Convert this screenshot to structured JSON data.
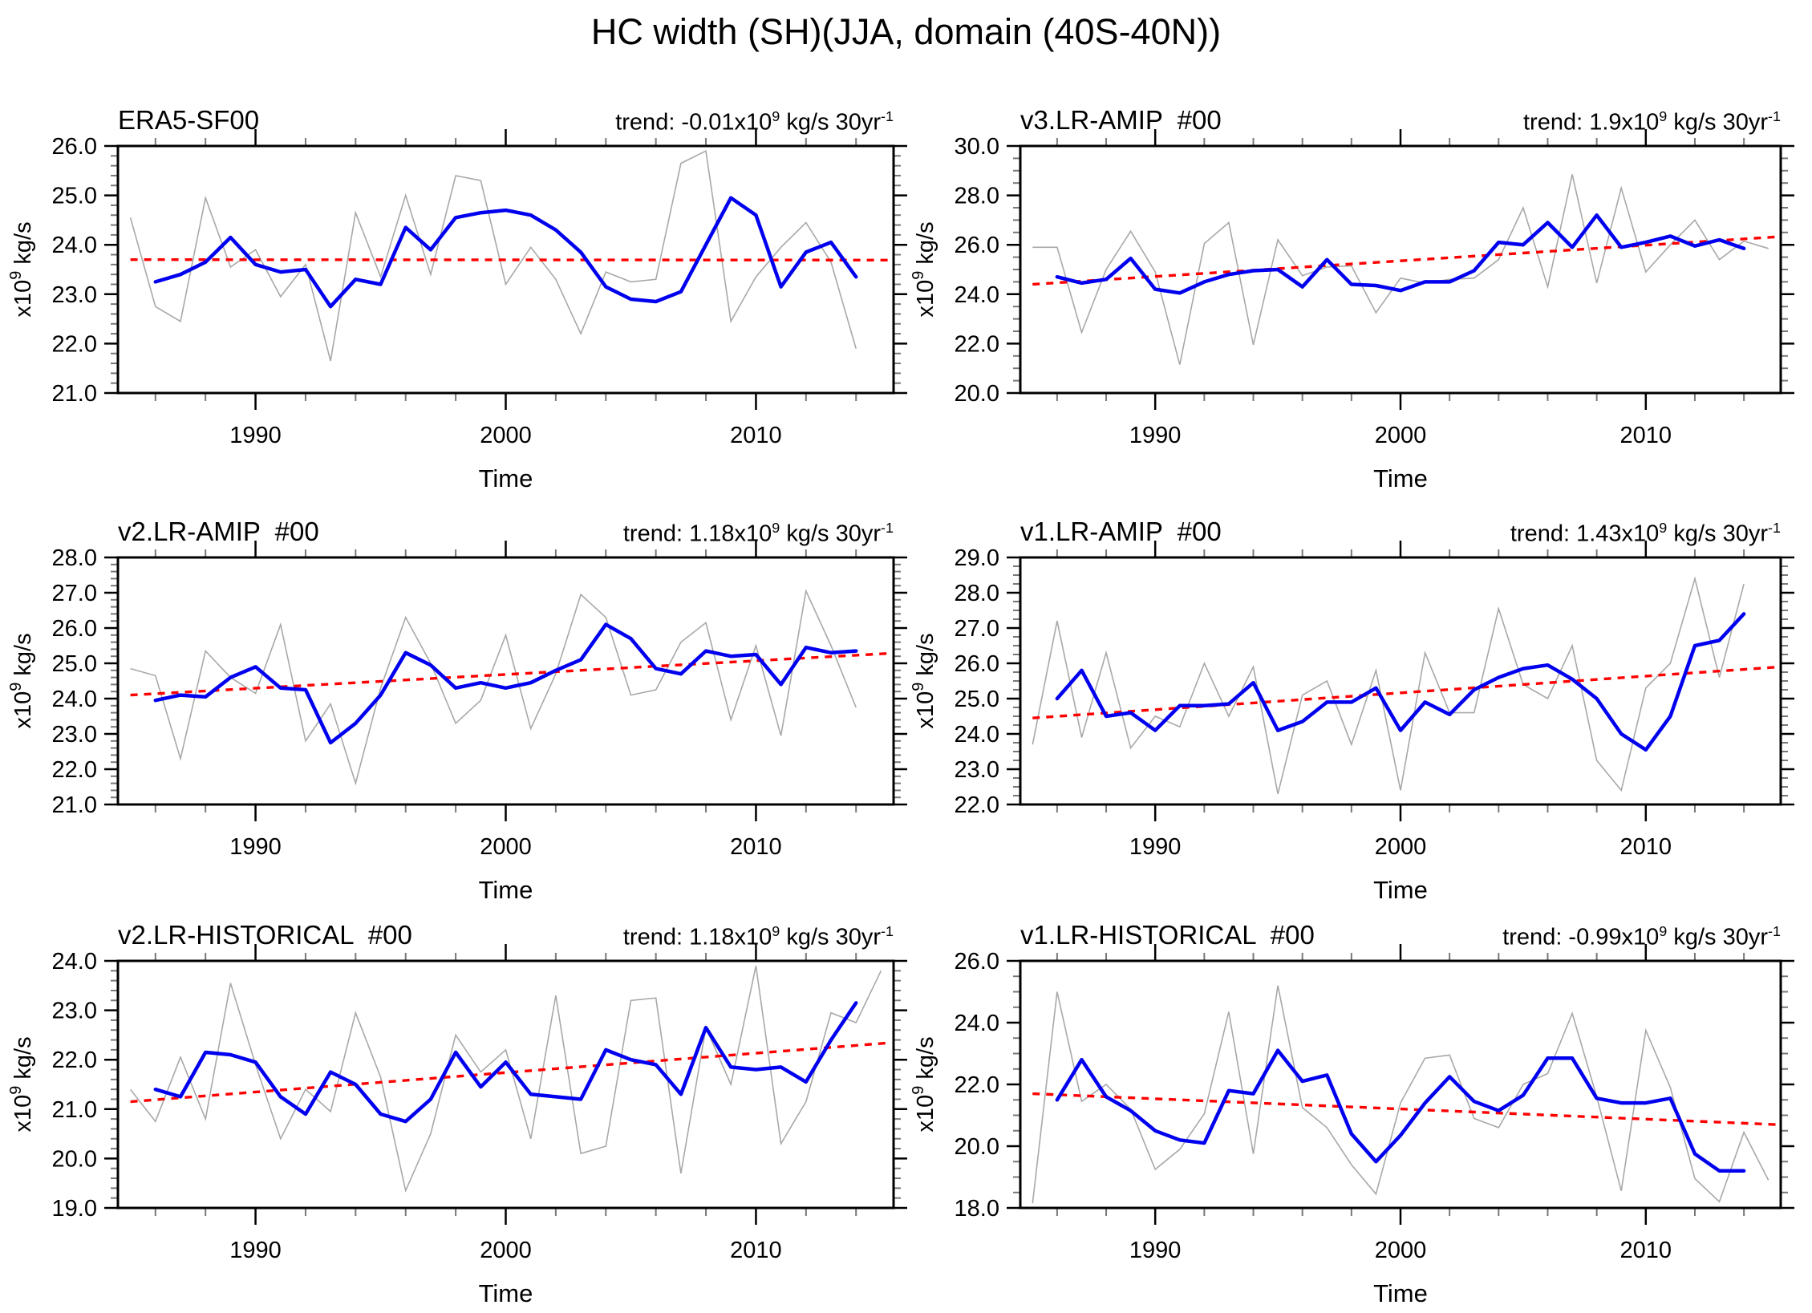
{
  "page_title": "HC width (SH)(JJA, domain (40S-40N))",
  "colors": {
    "background": "#ffffff",
    "annual_line": "#a8a8a8",
    "smoothed_line": "#0000ee",
    "trend_line": "#ff0000",
    "axis_major": "#000000",
    "axis_minor": "#787878"
  },
  "xaxis": {
    "label": "Time",
    "xlim": [
      1984.5,
      2015.5
    ],
    "major_ticks": [
      1990,
      2000,
      2010
    ],
    "major_tick_labels": [
      "1990",
      "2000",
      "2010"
    ],
    "minor_tick_start": 1986,
    "minor_tick_step": 2,
    "minor_tick_end": 2014
  },
  "ylabel_parts": {
    "pre": "x10",
    "exp": "9",
    "post": " kg/s"
  },
  "years": [
    1985,
    1986,
    1987,
    1988,
    1989,
    1990,
    1991,
    1992,
    1993,
    1994,
    1995,
    1996,
    1997,
    1998,
    1999,
    2000,
    2001,
    2002,
    2003,
    2004,
    2005,
    2006,
    2007,
    2008,
    2009,
    2010,
    2011,
    2012,
    2013,
    2014,
    2015
  ],
  "chart_data": [
    {
      "type": "line",
      "title": "ERA5-SF00",
      "trend": {
        "pre": "trend: -0.01x10",
        "exp": "9",
        "mid": " kg/s 30yr",
        "exp2": "-1"
      },
      "ylim": [
        21.0,
        26.0
      ],
      "ytick_step": 1.0,
      "yminor_step": 0.2,
      "ytick_labels": [
        "21.0",
        "22.0",
        "23.0",
        "24.0",
        "25.0",
        "26.0"
      ],
      "series": [
        {
          "name": "annual",
          "values": [
            24.55,
            22.75,
            22.45,
            24.95,
            23.55,
            23.9,
            22.95,
            23.6,
            21.65,
            24.65,
            23.35,
            25.0,
            23.4,
            25.4,
            25.3,
            23.2,
            23.95,
            23.3,
            22.2,
            23.45,
            23.25,
            23.3,
            25.65,
            25.9,
            22.45,
            23.35,
            23.95,
            24.45,
            23.65,
            21.9,
            null
          ]
        },
        {
          "name": "smoothed",
          "values": [
            null,
            23.25,
            23.4,
            23.65,
            24.15,
            23.6,
            23.45,
            23.5,
            22.75,
            23.3,
            23.2,
            24.35,
            23.9,
            24.55,
            24.65,
            24.7,
            24.6,
            24.3,
            23.85,
            23.15,
            22.9,
            22.85,
            23.05,
            24.0,
            24.95,
            24.6,
            23.15,
            23.85,
            24.05,
            23.35,
            null
          ]
        },
        {
          "name": "trend",
          "start_year": 1985,
          "end_year": 2015.3,
          "start_value": 23.7,
          "end_value": 23.69
        }
      ]
    },
    {
      "type": "line",
      "title": "v3.LR-AMIP  #00",
      "trend": {
        "pre": "trend: 1.9x10",
        "exp": "9",
        "mid": " kg/s 30yr",
        "exp2": "-1"
      },
      "ylim": [
        20.0,
        30.0
      ],
      "ytick_step": 2.0,
      "yminor_step": 0.5,
      "ytick_labels": [
        "20.0",
        "22.0",
        "24.0",
        "26.0",
        "28.0",
        "30.0"
      ],
      "series": [
        {
          "name": "annual",
          "values": [
            25.9,
            25.9,
            22.45,
            25.0,
            26.55,
            24.9,
            21.15,
            26.05,
            26.9,
            21.95,
            26.2,
            24.75,
            25.1,
            25.15,
            23.25,
            24.65,
            24.45,
            24.6,
            24.65,
            25.4,
            27.5,
            24.3,
            28.85,
            24.45,
            28.3,
            24.9,
            26.0,
            27.0,
            25.4,
            26.15,
            25.85
          ]
        },
        {
          "name": "smoothed",
          "values": [
            null,
            24.7,
            24.45,
            24.6,
            25.45,
            24.2,
            24.05,
            24.5,
            24.8,
            24.95,
            25.0,
            24.3,
            25.4,
            24.4,
            24.35,
            24.15,
            24.5,
            24.5,
            24.95,
            26.1,
            26.0,
            26.9,
            25.9,
            27.2,
            25.9,
            26.1,
            26.35,
            25.95,
            26.2,
            25.85,
            null
          ]
        },
        {
          "name": "trend",
          "start_year": 1985,
          "end_year": 2015.3,
          "start_value": 24.4,
          "end_value": 26.32
        }
      ]
    },
    {
      "type": "line",
      "title": "v2.LR-AMIP  #00",
      "trend": {
        "pre": "trend: 1.18x10",
        "exp": "9",
        "mid": " kg/s 30yr",
        "exp2": "-1"
      },
      "ylim": [
        21.0,
        28.0
      ],
      "ytick_step": 1.0,
      "yminor_step": 0.2,
      "ytick_labels": [
        "21.0",
        "22.0",
        "23.0",
        "24.0",
        "25.0",
        "26.0",
        "27.0",
        "28.0"
      ],
      "series": [
        {
          "name": "annual",
          "values": [
            24.85,
            24.65,
            22.3,
            25.35,
            24.6,
            24.15,
            26.1,
            22.8,
            23.85,
            21.6,
            24.3,
            26.3,
            25.0,
            23.3,
            23.95,
            25.8,
            23.15,
            24.7,
            26.95,
            26.3,
            24.1,
            24.25,
            25.6,
            26.15,
            23.4,
            25.5,
            22.95,
            27.05,
            25.5,
            23.75,
            null
          ]
        },
        {
          "name": "smoothed",
          "values": [
            null,
            23.95,
            24.1,
            24.05,
            24.6,
            24.9,
            24.3,
            24.25,
            22.75,
            23.3,
            24.1,
            25.3,
            24.95,
            24.3,
            24.45,
            24.3,
            24.45,
            24.8,
            25.1,
            26.1,
            25.7,
            24.85,
            24.7,
            25.35,
            25.2,
            25.25,
            24.4,
            25.45,
            25.3,
            25.35,
            null
          ]
        },
        {
          "name": "trend",
          "start_year": 1985,
          "end_year": 2015.3,
          "start_value": 24.1,
          "end_value": 25.28
        }
      ]
    },
    {
      "type": "line",
      "title": "v1.LR-AMIP  #00",
      "trend": {
        "pre": "trend: 1.43x10",
        "exp": "9",
        "mid": " kg/s 30yr",
        "exp2": "-1"
      },
      "ylim": [
        22.0,
        29.0
      ],
      "ytick_step": 1.0,
      "yminor_step": 0.25,
      "ytick_labels": [
        "22.0",
        "23.0",
        "24.0",
        "25.0",
        "26.0",
        "27.0",
        "28.0",
        "29.0"
      ],
      "series": [
        {
          "name": "annual",
          "values": [
            23.7,
            27.2,
            23.9,
            26.3,
            23.6,
            24.5,
            24.2,
            26.0,
            24.5,
            25.9,
            22.3,
            25.1,
            25.5,
            23.7,
            25.8,
            22.4,
            26.3,
            24.6,
            24.6,
            27.55,
            25.4,
            25.0,
            26.5,
            23.25,
            22.4,
            25.3,
            26.0,
            28.4,
            25.6,
            28.25,
            null
          ]
        },
        {
          "name": "smoothed",
          "values": [
            null,
            25.0,
            25.8,
            24.5,
            24.6,
            24.1,
            24.8,
            24.8,
            24.85,
            25.45,
            24.1,
            24.35,
            24.9,
            24.9,
            25.3,
            24.1,
            24.9,
            24.55,
            25.25,
            25.6,
            25.85,
            25.95,
            25.55,
            25.0,
            24.0,
            23.55,
            24.5,
            26.5,
            26.65,
            27.4,
            null
          ]
        },
        {
          "name": "trend",
          "start_year": 1985,
          "end_year": 2015.3,
          "start_value": 24.45,
          "end_value": 25.89
        }
      ]
    },
    {
      "type": "line",
      "title": "v2.LR-HISTORICAL  #00",
      "trend": {
        "pre": "trend: 1.18x10",
        "exp": "9",
        "mid": " kg/s 30yr",
        "exp2": "-1"
      },
      "ylim": [
        19.0,
        24.0
      ],
      "ytick_step": 1.0,
      "yminor_step": 0.2,
      "ytick_labels": [
        "19.0",
        "20.0",
        "21.0",
        "22.0",
        "23.0",
        "24.0"
      ],
      "series": [
        {
          "name": "annual",
          "values": [
            21.4,
            20.75,
            22.05,
            20.8,
            23.55,
            21.9,
            20.4,
            21.4,
            20.95,
            22.95,
            21.65,
            19.35,
            20.5,
            22.5,
            21.75,
            22.2,
            20.4,
            23.3,
            20.1,
            20.25,
            23.2,
            23.25,
            19.7,
            22.65,
            21.5,
            23.9,
            20.3,
            21.15,
            22.95,
            22.75,
            23.8
          ]
        },
        {
          "name": "smoothed",
          "values": [
            null,
            21.4,
            21.25,
            22.15,
            22.1,
            21.95,
            21.25,
            20.9,
            21.75,
            21.5,
            20.9,
            20.75,
            21.2,
            22.15,
            21.45,
            21.95,
            21.3,
            21.25,
            21.2,
            22.2,
            22.0,
            21.9,
            21.3,
            22.65,
            21.85,
            21.8,
            21.85,
            21.55,
            22.4,
            23.15,
            null
          ]
        },
        {
          "name": "trend",
          "start_year": 1985,
          "end_year": 2015.3,
          "start_value": 21.15,
          "end_value": 22.34
        }
      ]
    },
    {
      "type": "line",
      "title": "v1.LR-HISTORICAL  #00",
      "trend": {
        "pre": "trend: -0.99x10",
        "exp": "9",
        "mid": " kg/s 30yr",
        "exp2": "-1"
      },
      "ylim": [
        18.0,
        26.0
      ],
      "ytick_step": 2.0,
      "yminor_step": 0.5,
      "ytick_labels": [
        "18.0",
        "20.0",
        "22.0",
        "24.0",
        "26.0"
      ],
      "series": [
        {
          "name": "annual",
          "values": [
            18.15,
            25.0,
            21.45,
            22.0,
            21.2,
            19.25,
            19.9,
            21.05,
            24.35,
            19.75,
            25.2,
            21.25,
            20.6,
            19.4,
            18.45,
            21.4,
            22.85,
            22.95,
            20.9,
            20.6,
            22.0,
            22.35,
            24.3,
            21.6,
            18.55,
            23.75,
            21.9,
            18.95,
            18.2,
            20.45,
            18.9
          ]
        },
        {
          "name": "smoothed",
          "values": [
            null,
            21.5,
            22.8,
            21.6,
            21.15,
            20.5,
            20.2,
            20.1,
            21.8,
            21.7,
            23.1,
            22.1,
            22.3,
            20.4,
            19.5,
            20.35,
            21.4,
            22.25,
            21.45,
            21.15,
            21.65,
            22.85,
            22.85,
            21.55,
            21.4,
            21.4,
            21.55,
            19.75,
            19.2,
            19.2,
            null
          ]
        },
        {
          "name": "trend",
          "start_year": 1985,
          "end_year": 2015.3,
          "start_value": 21.7,
          "end_value": 20.7
        }
      ]
    }
  ]
}
